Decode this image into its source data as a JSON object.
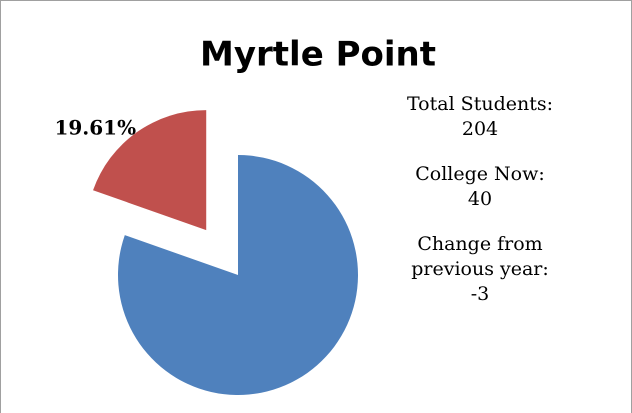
{
  "chart_data": {
    "type": "pie",
    "title": "Myrtle Point",
    "categories": [
      null,
      null
    ],
    "values": [
      80.39,
      19.61
    ],
    "value_labels": [
      null,
      "19.61%"
    ],
    "colors": [
      "#4f81bd",
      "#c0504d"
    ],
    "explode": [
      false,
      true
    ],
    "annotations": [
      {
        "label": "Total Students:",
        "value": 204
      },
      {
        "label": "College Now:",
        "value": 40
      },
      {
        "label": "Change from previous year:",
        "value": -3
      }
    ]
  }
}
